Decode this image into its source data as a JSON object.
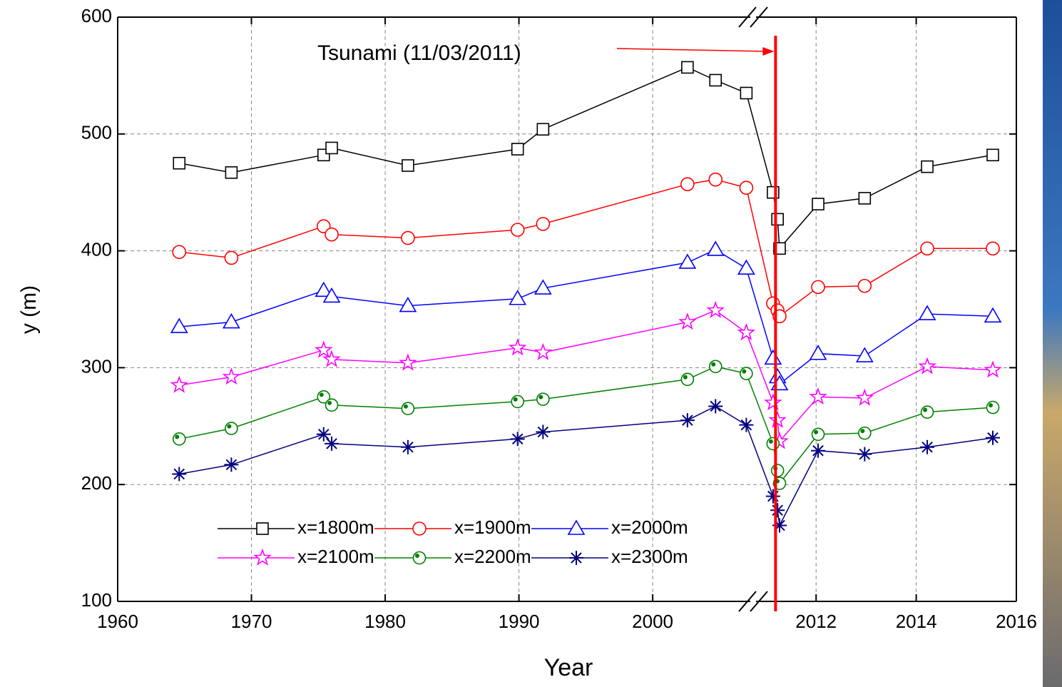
{
  "chart_data": {
    "type": "line",
    "x_label": "Year",
    "y_label": "y (m)",
    "xlim": [
      1960,
      2016
    ],
    "xbreak": [
      2007.3,
      2010.8
    ],
    "xticks": [
      1960,
      1970,
      1980,
      1990,
      2000,
      2012,
      2014,
      2016
    ],
    "ylim": [
      100,
      600
    ],
    "yticks": [
      100,
      200,
      300,
      400,
      500,
      600
    ],
    "grid": true,
    "annotation": {
      "text": "Tsunami (11/03/2011)",
      "x": 2011.19,
      "color": "#ff0000"
    },
    "x": [
      1964.6,
      1968.5,
      1975.4,
      1976.0,
      1981.7,
      1989.9,
      1991.8,
      2002.6,
      2004.7,
      2007.0,
      2011.14,
      2011.23,
      2011.27,
      2012.04,
      2012.97,
      2014.22,
      2015.53
    ],
    "series": [
      {
        "name": "x=1800m",
        "color": "#000000",
        "marker": "square",
        "values": [
          475,
          467,
          482,
          488,
          473,
          487,
          504,
          557,
          546,
          535,
          450,
          427,
          402,
          440,
          445,
          472,
          482
        ]
      },
      {
        "name": "x=1900m",
        "color": "#ff0000",
        "marker": "circle",
        "values": [
          399,
          394,
          421,
          414,
          411,
          418,
          423,
          457,
          461,
          454,
          355,
          349,
          344,
          369,
          370,
          402,
          402
        ]
      },
      {
        "name": "x=2000m",
        "color": "#0000ff",
        "marker": "triangle",
        "values": [
          335,
          339,
          366,
          361,
          353,
          359,
          368,
          390,
          401,
          385,
          308,
          292,
          286,
          312,
          310,
          346,
          344
        ]
      },
      {
        "name": "x=2100m",
        "color": "#ff00ff",
        "marker": "star",
        "values": [
          285,
          292,
          315,
          307,
          304,
          317,
          313,
          339,
          349,
          330,
          270,
          255,
          237,
          275,
          274,
          301,
          298
        ]
      },
      {
        "name": "x=2200m",
        "color": "#008000",
        "marker": "circle-dot",
        "values": [
          239,
          248,
          275,
          268,
          265,
          271,
          273,
          290,
          301,
          295,
          235,
          212,
          201,
          243,
          244,
          262,
          266
        ]
      },
      {
        "name": "x=2300m",
        "color": "#000080",
        "marker": "asterisk",
        "values": [
          209,
          217,
          243,
          235,
          232,
          239,
          245,
          255,
          267,
          251,
          190,
          178,
          165,
          229,
          226,
          232,
          240
        ]
      }
    ]
  }
}
